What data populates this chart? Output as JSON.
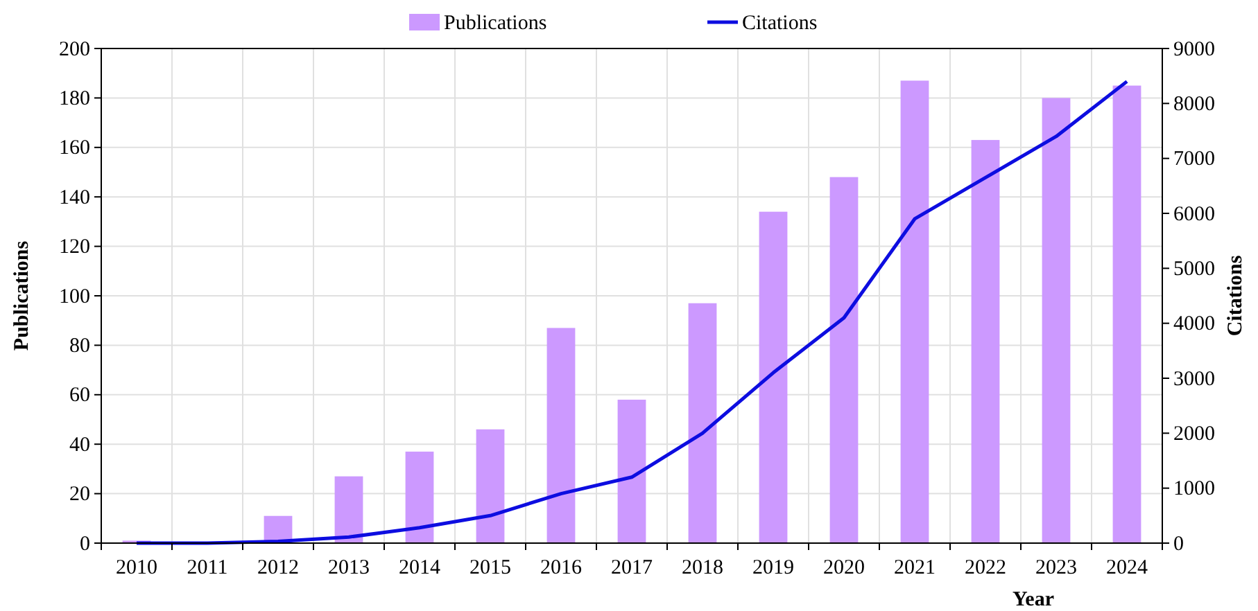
{
  "chart_data": {
    "type": "bar",
    "categories": [
      "2010",
      "2011",
      "2012",
      "2013",
      "2014",
      "2015",
      "2016",
      "2017",
      "2018",
      "2019",
      "2020",
      "2021",
      "2022",
      "2023",
      "2024"
    ],
    "series": [
      {
        "name": "Publications",
        "color": "#cc99ff",
        "values": [
          1,
          0,
          11,
          27,
          37,
          46,
          87,
          58,
          97,
          134,
          148,
          187,
          163,
          180,
          185
        ]
      },
      {
        "name": "Citations",
        "type": "line",
        "axis": "y2",
        "color": "#0d0de0",
        "values": [
          0,
          0,
          30,
          110,
          280,
          500,
          900,
          1200,
          2000,
          3100,
          4100,
          5900,
          6650,
          7400,
          8400
        ]
      }
    ],
    "xlabel": "Year",
    "ylabel": "Publications",
    "y2label": "Citations",
    "ylim": [
      0,
      200
    ],
    "yticks": [
      0,
      20,
      40,
      60,
      80,
      100,
      120,
      140,
      160,
      180,
      200
    ],
    "y2lim": [
      0,
      9000
    ],
    "y2ticks": [
      0,
      1000,
      2000,
      3000,
      4000,
      5000,
      6000,
      7000,
      8000,
      9000
    ],
    "grid": true,
    "legend": "top",
    "marker": "none",
    "line_style": "solid"
  }
}
